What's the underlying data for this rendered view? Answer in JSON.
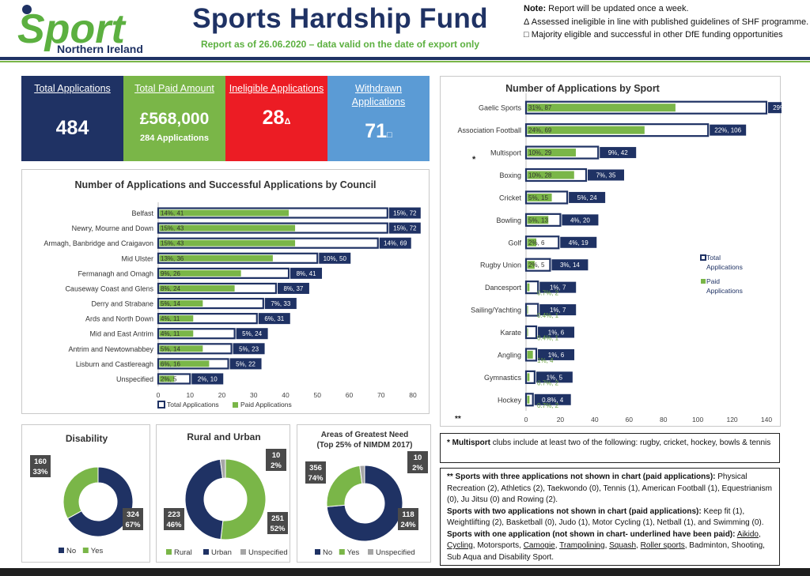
{
  "header": {
    "logo_word": "Sport",
    "logo_sub": "Northern Ireland",
    "title": "Sports Hardship Fund",
    "subtitle": "Report as of 26.06.2020 – data valid on the date of export only",
    "notes": [
      {
        "bold": "Note:",
        "text": " Report will be updated once a week."
      },
      {
        "bold": "",
        "text": "Δ Assessed ineligible in line with published guidelines of SHF programme."
      },
      {
        "bold": "",
        "text": "□ Majority eligible and successful in other DfE funding opportunities"
      }
    ]
  },
  "colors": {
    "navy": "#1f3264",
    "green": "#7ab648",
    "red": "#ec1c24",
    "blue": "#5b9bd5",
    "grey": "#a6a6a6"
  },
  "kpis": [
    {
      "label": "Total Applications",
      "value": "484",
      "sub": "",
      "mark": "",
      "color": "#1f3264"
    },
    {
      "label": "Total Paid Amount",
      "value": "£568,000",
      "sub": "284 Applications",
      "mark": "",
      "color": "#7ab648"
    },
    {
      "label": "Ineligible Applications",
      "value": "28",
      "sub": "",
      "mark": "Δ",
      "color": "#ec1c24"
    },
    {
      "label": "Withdrawn Applications",
      "value": "71",
      "sub": "",
      "mark": "□",
      "color": "#5b9bd5"
    }
  ],
  "chart_data": [
    {
      "type": "bar",
      "title": "Number of Applications and Successful Applications by Council",
      "orientation": "horizontal",
      "categories": [
        "Belfast",
        "Newry, Mourne and Down",
        "Armagh, Banbridge and Craigavon",
        "Mid Ulster",
        "Fermanagh and Omagh",
        "Causeway Coast and Glens",
        "Derry and Strabane",
        "Ards and North Down",
        "Mid and East Antrim",
        "Antrim and Newtownabbey",
        "Lisburn and Castlereagh",
        "Unspecified"
      ],
      "series": [
        {
          "name": "Total Applications",
          "values": [
            72,
            72,
            69,
            50,
            41,
            37,
            33,
            31,
            24,
            23,
            22,
            10
          ],
          "labels": [
            "15%, 72",
            "15%, 72",
            "14%, 69",
            "10%, 50",
            "8%, 41",
            "8%, 37",
            "7%, 33",
            "6%, 31",
            "5%, 24",
            "5%, 23",
            "5%, 22",
            "2%, 10"
          ]
        },
        {
          "name": "Paid Applications",
          "values": [
            41,
            43,
            43,
            36,
            26,
            24,
            14,
            11,
            11,
            14,
            16,
            5
          ],
          "labels": [
            "14%, 41",
            "15%, 43",
            "15%, 43",
            "13%, 36",
            "9%, 26",
            "8%, 24",
            "5%, 14",
            "4%, 11",
            "4%, 11",
            "5%, 14",
            "6%, 16",
            "2%, 5"
          ]
        }
      ],
      "xlim": [
        0,
        80
      ],
      "ticks": [
        "0",
        "10",
        "20",
        "30",
        "40",
        "50",
        "60",
        "70",
        "80"
      ],
      "legend": "bottom"
    },
    {
      "type": "bar",
      "title": "Number of Applications by Sport",
      "orientation": "horizontal",
      "categories": [
        "Gaelic Sports",
        "Association Football",
        "Multisport",
        "Boxing",
        "Cricket",
        "Bowling",
        "Golf",
        "Rugby Union",
        "Dancesport",
        "Sailing/Yachting",
        "Karate",
        "Angling",
        "Gymnastics",
        "Hockey"
      ],
      "series": [
        {
          "name": "Total Applications",
          "values": [
            140,
            106,
            42,
            35,
            24,
            20,
            19,
            14,
            7,
            7,
            6,
            6,
            5,
            4
          ],
          "labels": [
            "29%, 140",
            "22%, 106",
            "9%, 42",
            "7%, 35",
            "5%, 24",
            "4%, 20",
            "4%, 19",
            "3%, 14",
            "1%, 7",
            "1%, 7",
            "1%, 6",
            "1%, 6",
            "1%, 5",
            "0.8%, 4"
          ]
        },
        {
          "name": "Paid Applications",
          "values": [
            87,
            69,
            29,
            28,
            15,
            13,
            6,
            5,
            2,
            1,
            1,
            4,
            2,
            2
          ],
          "labels": [
            "31%, 87",
            "24%, 69",
            "10%, 29",
            "10%, 28",
            "5%, 15",
            "5%, 13",
            "2%, 6",
            "2%, 5",
            "0.7%, 2",
            "0.4%, 1",
            "0.4%, 1",
            "1%, 4",
            "0.7%, 2",
            "0.7%, 2"
          ]
        }
      ],
      "xlim": [
        0,
        140
      ],
      "ticks": [
        "0",
        "20",
        "40",
        "60",
        "80",
        "100",
        "120",
        "140"
      ],
      "legend": "right",
      "marks": {
        "multisport": "*",
        "axis": "**"
      }
    },
    {
      "type": "pie",
      "title": "Disability",
      "categories": [
        "No",
        "Yes"
      ],
      "values": [
        324,
        160
      ],
      "labels": [
        [
          "324",
          "67%"
        ],
        [
          "160",
          "33%"
        ]
      ],
      "colors": [
        "#1f3264",
        "#7ab648"
      ]
    },
    {
      "type": "pie",
      "title": "Rural and Urban",
      "categories": [
        "Rural",
        "Urban",
        "Unspecified"
      ],
      "values": [
        251,
        223,
        10
      ],
      "labels": [
        [
          "251",
          "52%"
        ],
        [
          "223",
          "46%"
        ],
        [
          "10",
          "2%"
        ]
      ],
      "colors": [
        "#7ab648",
        "#1f3264",
        "#a6a6a6"
      ]
    },
    {
      "type": "pie",
      "title": "Areas of Greatest Need (Top 25% of NIMDM 2017)",
      "title_lines": [
        "Areas of Greatest Need",
        "(Top 25% of NIMDM 2017)"
      ],
      "categories": [
        "No",
        "Yes",
        "Unspecified"
      ],
      "values": [
        356,
        118,
        10
      ],
      "labels": [
        [
          "356",
          "74%"
        ],
        [
          "118",
          "24%"
        ],
        [
          "10",
          "2%"
        ]
      ],
      "colors": [
        "#1f3264",
        "#7ab648",
        "#a6a6a6"
      ]
    }
  ],
  "note_multisport": {
    "bold": "* Multisport",
    "text": " clubs include at least two of the following: rugby, cricket, hockey, bowls & tennis"
  },
  "note_sports": {
    "p1_bold": "** Sports with three applications not shown in chart (paid applications):",
    "p1_text": " Physical Recreation (2), Athletics (2), Taekwondo (0), Tennis (1), American Football (1), Equestrianism (0), Ju Jitsu (0) and Rowing (2).",
    "p2_bold": "Sports with two applications not shown in chart (paid applications):",
    "p2_text": " Keep fit (1), Weightlifting (2), Basketball (0), Judo (1), Motor Cycling (1), Netball (1), and Swimming (0).",
    "p3_bold": "Sports with one application (not shown in chart- underlined have been paid):",
    "p3_items": [
      {
        "t": "Aikido",
        "u": true
      },
      {
        "t": ", ",
        "u": false
      },
      {
        "t": "Cycling",
        "u": true
      },
      {
        "t": ", Motorsports, ",
        "u": false
      },
      {
        "t": "Camogie",
        "u": true
      },
      {
        "t": ", ",
        "u": false
      },
      {
        "t": "Trampolining",
        "u": true
      },
      {
        "t": ", ",
        "u": false
      },
      {
        "t": "Squash",
        "u": true
      },
      {
        "t": ", ",
        "u": false
      },
      {
        "t": "Roller sports",
        "u": true
      },
      {
        "t": ", Badminton, Shooting, Sub Aqua and Disability Sport.",
        "u": false
      }
    ]
  }
}
